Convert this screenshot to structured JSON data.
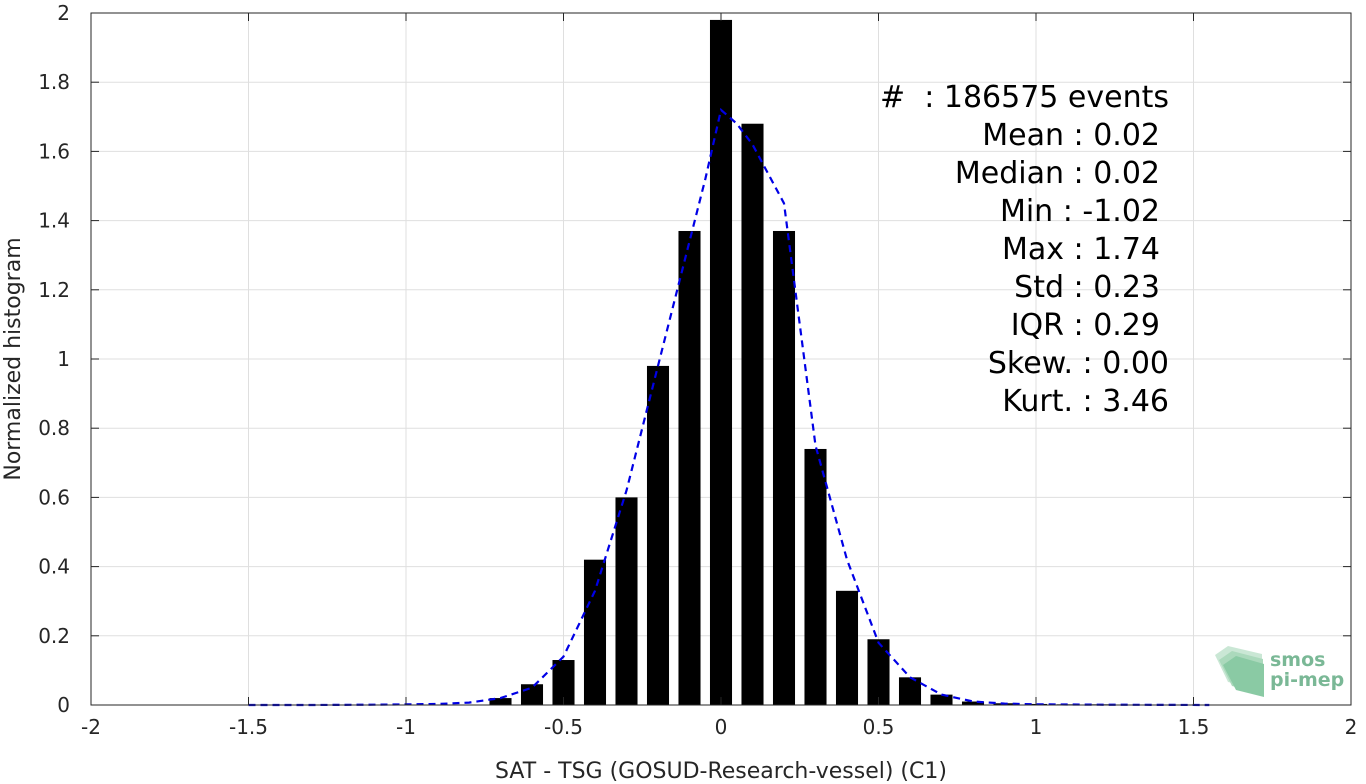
{
  "chart_data": {
    "type": "bar",
    "xlabel": "SAT - TSG (GOSUD-Research-vessel) (C1)",
    "ylabel": "Normalized histogram",
    "xlim": [
      -2,
      2
    ],
    "ylim": [
      0,
      2
    ],
    "xticks": [
      "-2",
      "-1.5",
      "-1",
      "-0.5",
      "0",
      "0.5",
      "1",
      "1.5",
      "2"
    ],
    "yticks": [
      "0",
      "0.2",
      "0.4",
      "0.6",
      "0.8",
      "1",
      "1.2",
      "1.4",
      "1.6",
      "1.8",
      "2"
    ],
    "grid": true,
    "bin_width": 0.1,
    "bar_width_fraction": 0.7,
    "bars": {
      "x": [
        -0.7,
        -0.6,
        -0.5,
        -0.4,
        -0.3,
        -0.2,
        -0.1,
        0.0,
        0.1,
        0.2,
        0.3,
        0.4,
        0.5,
        0.6,
        0.7,
        0.8,
        0.9,
        1.0,
        1.1,
        1.2,
        1.3,
        1.4,
        1.5
      ],
      "values": [
        0.02,
        0.06,
        0.13,
        0.42,
        0.6,
        0.98,
        1.37,
        1.98,
        1.68,
        1.37,
        0.74,
        0.33,
        0.19,
        0.08,
        0.03,
        0.01,
        0.005,
        0.003,
        0.002,
        0.002,
        0.001,
        0.001,
        0.001
      ],
      "color": "#000000"
    },
    "fit_curve": {
      "style": "dashed",
      "color": "#0000e6",
      "x": [
        -1.5,
        -1.3,
        -1.1,
        -0.9,
        -0.8,
        -0.7,
        -0.6,
        -0.5,
        -0.4,
        -0.3,
        -0.2,
        -0.1,
        -0.05,
        0.0,
        0.05,
        0.1,
        0.2,
        0.3,
        0.4,
        0.5,
        0.6,
        0.7,
        0.8,
        0.9,
        1.0,
        1.2,
        1.55
      ],
      "y": [
        0.0,
        0.0,
        0.001,
        0.003,
        0.007,
        0.02,
        0.05,
        0.14,
        0.33,
        0.62,
        0.98,
        1.34,
        1.52,
        1.72,
        1.68,
        1.62,
        1.45,
        0.75,
        0.42,
        0.18,
        0.08,
        0.03,
        0.01,
        0.004,
        0.002,
        0.001,
        0.0
      ]
    },
    "annotations": [
      "#  : 186575 events",
      "Mean : 0.02",
      "Median : 0.02",
      "Min : -1.02",
      "Max : 1.74",
      "Std : 0.23",
      "IQR : 0.29",
      "Skew. : 0.00",
      "Kurt. : 3.46"
    ]
  },
  "logo": {
    "line1": "smos",
    "line2": "pi-mep",
    "color": "#3c9e6a"
  }
}
